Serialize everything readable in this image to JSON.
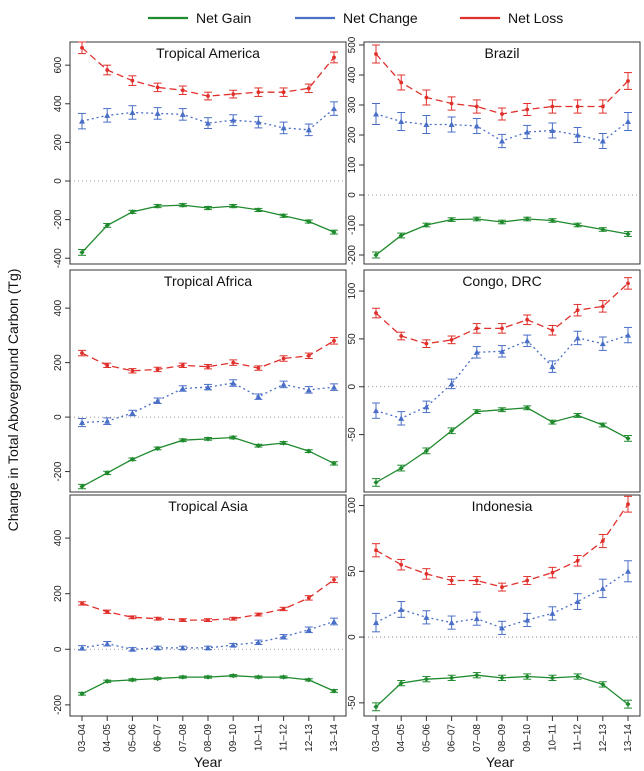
{
  "legend": [
    {
      "name": "Net Gain",
      "color": "#1f8a2e"
    },
    {
      "name": "Net Change",
      "color": "#4a6fc7"
    },
    {
      "name": "Net Loss",
      "color": "#e0302b"
    }
  ],
  "ylabel": "Change in Total Aboveground Carbon (Tg)",
  "xlabel": "Year",
  "categories": [
    "03–04",
    "04–05",
    "05–06",
    "06–07",
    "07–08",
    "08–09",
    "09–10",
    "10–11",
    "11–12",
    "12–13",
    "13–14"
  ],
  "chart_data": [
    {
      "type": "line",
      "title": "Tropical America",
      "ylim": [
        -430,
        720
      ],
      "yticks": [
        -400,
        -200,
        0,
        200,
        400,
        600
      ],
      "series": [
        {
          "name": "Net Loss",
          "values": [
            690,
            575,
            520,
            485,
            470,
            440,
            450,
            460,
            460,
            480,
            640
          ],
          "err": [
            30,
            25,
            25,
            22,
            22,
            20,
            20,
            22,
            22,
            22,
            28
          ]
        },
        {
          "name": "Net Change",
          "values": [
            310,
            340,
            355,
            350,
            345,
            300,
            315,
            305,
            275,
            265,
            375
          ],
          "err": [
            40,
            35,
            35,
            30,
            30,
            28,
            28,
            30,
            30,
            30,
            35
          ]
        },
        {
          "name": "Net Gain",
          "values": [
            -370,
            -230,
            -160,
            -130,
            -125,
            -140,
            -130,
            -150,
            -180,
            -210,
            -265
          ],
          "err": [
            15,
            10,
            8,
            8,
            8,
            8,
            8,
            8,
            8,
            8,
            10
          ]
        }
      ]
    },
    {
      "type": "line",
      "title": "Brazil",
      "ylim": [
        -230,
        510
      ],
      "yticks": [
        -200,
        -100,
        0,
        100,
        200,
        300,
        400,
        500
      ],
      "series": [
        {
          "name": "Net Loss",
          "values": [
            470,
            375,
            325,
            305,
            295,
            270,
            285,
            295,
            295,
            295,
            380
          ],
          "err": [
            30,
            25,
            25,
            22,
            22,
            20,
            20,
            22,
            22,
            22,
            28
          ]
        },
        {
          "name": "Net Change",
          "values": [
            270,
            245,
            235,
            235,
            230,
            180,
            210,
            215,
            200,
            180,
            245
          ],
          "err": [
            35,
            30,
            30,
            25,
            25,
            22,
            22,
            25,
            25,
            25,
            30
          ]
        },
        {
          "name": "Net Gain",
          "values": [
            -200,
            -135,
            -100,
            -82,
            -80,
            -90,
            -80,
            -85,
            -100,
            -115,
            -130
          ],
          "err": [
            10,
            8,
            6,
            6,
            6,
            6,
            6,
            6,
            6,
            6,
            8
          ]
        }
      ]
    },
    {
      "type": "line",
      "title": "Tropical Africa",
      "ylim": [
        -275,
        540
      ],
      "yticks": [
        -200,
        0,
        200,
        400
      ],
      "series": [
        {
          "name": "Net Loss",
          "values": [
            235,
            190,
            170,
            175,
            190,
            185,
            200,
            180,
            215,
            225,
            280
          ],
          "err": [
            10,
            8,
            8,
            8,
            8,
            8,
            10,
            8,
            10,
            10,
            12
          ]
        },
        {
          "name": "Net Change",
          "values": [
            -20,
            -15,
            15,
            60,
            105,
            110,
            125,
            75,
            120,
            100,
            110
          ],
          "err": [
            15,
            12,
            10,
            10,
            10,
            10,
            12,
            10,
            12,
            12,
            12
          ]
        },
        {
          "name": "Net Gain",
          "values": [
            -255,
            -205,
            -155,
            -115,
            -85,
            -80,
            -75,
            -105,
            -95,
            -125,
            -170
          ],
          "err": [
            8,
            6,
            5,
            5,
            5,
            5,
            5,
            5,
            5,
            5,
            6
          ]
        }
      ]
    },
    {
      "type": "line",
      "title": "Congo, DRC",
      "ylim": [
        -110,
        122
      ],
      "yticks": [
        -50,
        0,
        50,
        100
      ],
      "series": [
        {
          "name": "Net Loss",
          "values": [
            77,
            53,
            45,
            49,
            61,
            61,
            70,
            59,
            80,
            84,
            108
          ],
          "err": [
            5,
            4,
            4,
            4,
            5,
            5,
            5,
            5,
            6,
            6,
            6
          ]
        },
        {
          "name": "Net Change",
          "values": [
            -25,
            -33,
            -21,
            3,
            36,
            37,
            48,
            21,
            51,
            45,
            54
          ],
          "err": [
            8,
            7,
            6,
            5,
            6,
            6,
            6,
            6,
            7,
            7,
            8
          ]
        },
        {
          "name": "Net Gain",
          "values": [
            -100,
            -85,
            -67,
            -46,
            -26,
            -24,
            -22,
            -37,
            -30,
            -40,
            -54
          ],
          "err": [
            4,
            3,
            3,
            3,
            2,
            2,
            2,
            2,
            2,
            2,
            3
          ]
        }
      ]
    },
    {
      "type": "line",
      "title": "Tropical Asia",
      "ylim": [
        -240,
        555
      ],
      "yticks": [
        -200,
        0,
        200,
        400
      ],
      "series": [
        {
          "name": "Net Loss",
          "values": [
            165,
            135,
            115,
            110,
            105,
            105,
            110,
            125,
            145,
            185,
            250
          ],
          "err": [
            6,
            6,
            5,
            5,
            5,
            5,
            5,
            5,
            6,
            8,
            10
          ]
        },
        {
          "name": "Net Change",
          "values": [
            5,
            20,
            0,
            5,
            5,
            5,
            15,
            25,
            45,
            70,
            100
          ],
          "err": [
            8,
            8,
            6,
            6,
            6,
            6,
            6,
            8,
            8,
            10,
            12
          ]
        },
        {
          "name": "Net Gain",
          "values": [
            -160,
            -115,
            -110,
            -105,
            -100,
            -100,
            -95,
            -100,
            -100,
            -110,
            -150
          ],
          "err": [
            5,
            4,
            4,
            4,
            4,
            4,
            4,
            4,
            4,
            4,
            5
          ]
        }
      ]
    },
    {
      "type": "line",
      "title": "Indonesia",
      "ylim": [
        -60,
        108
      ],
      "yticks": [
        -50,
        0,
        50,
        100
      ],
      "series": [
        {
          "name": "Net Loss",
          "values": [
            66,
            55,
            48,
            43,
            43,
            38,
            43,
            49,
            58,
            73,
            101
          ],
          "err": [
            5,
            4,
            4,
            3,
            3,
            3,
            3,
            4,
            4,
            5,
            6
          ]
        },
        {
          "name": "Net Change",
          "values": [
            11,
            21,
            15,
            11,
            14,
            7,
            13,
            18,
            27,
            37,
            50
          ],
          "err": [
            7,
            6,
            5,
            5,
            5,
            5,
            5,
            5,
            6,
            7,
            8
          ]
        },
        {
          "name": "Net Gain",
          "values": [
            -53,
            -35,
            -32,
            -31,
            -29,
            -31,
            -30,
            -31,
            -30,
            -36,
            -51
          ],
          "err": [
            3,
            2,
            2,
            2,
            2,
            2,
            2,
            2,
            2,
            2,
            3
          ]
        }
      ]
    }
  ]
}
